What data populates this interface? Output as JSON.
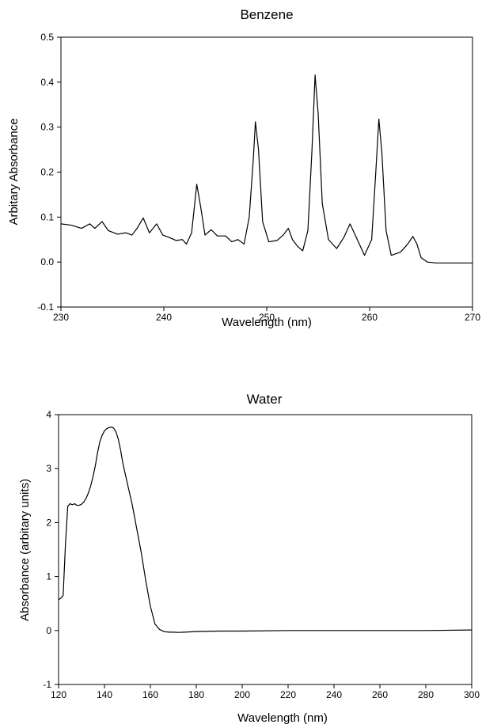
{
  "chart_data": [
    {
      "type": "line",
      "title": "Benzene",
      "xlabel": "Wavelength (nm)",
      "ylabel": "Arbitary Absorbance",
      "xlim": [
        230,
        270
      ],
      "ylim": [
        -0.1,
        0.5
      ],
      "xticks": [
        "230",
        "240",
        "250",
        "260",
        "270"
      ],
      "yticks": [
        "-0.1",
        "0.0",
        "0.1",
        "0.2",
        "0.3",
        "0.4",
        "0.5"
      ],
      "grid": false,
      "series": [
        {
          "x": [
            230,
            231,
            232,
            232.8,
            233.3,
            234.0,
            234.6,
            235.5,
            236.3,
            236.9,
            237.4,
            238.0,
            238.6,
            239.3,
            239.9,
            240.5,
            241.2,
            241.8,
            242.2,
            242.7,
            243.2,
            243.6,
            244.0,
            244.6,
            245.2,
            246.0,
            246.6,
            247.2,
            247.8,
            248.3,
            248.7,
            248.9,
            249.2,
            249.6,
            250.2,
            251.0,
            251.6,
            252.1,
            252.5,
            253.0,
            253.5,
            254.0,
            254.4,
            254.7,
            255.0,
            255.4,
            256.0,
            256.8,
            257.5,
            258.1,
            258.7,
            259.5,
            260.2,
            260.6,
            260.9,
            261.2,
            261.6,
            262.1,
            263.0,
            263.7,
            264.2,
            264.6,
            265.0,
            265.6,
            266.5,
            270.0
          ],
          "y": [
            0.085,
            0.082,
            0.075,
            0.085,
            0.075,
            0.09,
            0.07,
            0.062,
            0.065,
            0.06,
            0.075,
            0.098,
            0.065,
            0.085,
            0.06,
            0.055,
            0.048,
            0.05,
            0.04,
            0.065,
            0.173,
            0.12,
            0.06,
            0.072,
            0.058,
            0.058,
            0.045,
            0.05,
            0.04,
            0.1,
            0.23,
            0.312,
            0.25,
            0.09,
            0.045,
            0.048,
            0.06,
            0.075,
            0.05,
            0.035,
            0.025,
            0.07,
            0.25,
            0.416,
            0.33,
            0.13,
            0.05,
            0.03,
            0.055,
            0.085,
            0.055,
            0.015,
            0.05,
            0.2,
            0.318,
            0.24,
            0.07,
            0.015,
            0.022,
            0.04,
            0.057,
            0.04,
            0.01,
            0.0,
            -0.002,
            -0.002
          ]
        }
      ]
    },
    {
      "type": "line",
      "title": "Water",
      "xlabel": "Wavelength (nm)",
      "ylabel": "Absorbance (arbitary units)",
      "xlim": [
        120,
        300
      ],
      "ylim": [
        -1,
        4
      ],
      "xticks": [
        "120",
        "140",
        "160",
        "180",
        "200",
        "220",
        "240",
        "260",
        "280",
        "300"
      ],
      "yticks": [
        "-1",
        "0",
        "1",
        "2",
        "3",
        "4"
      ],
      "grid": false,
      "series": [
        {
          "x": [
            120,
            121,
            122,
            123,
            124,
            125,
            126,
            127,
            128,
            129,
            130,
            131,
            132,
            133,
            134,
            135,
            136,
            137,
            138,
            139,
            140,
            141,
            142,
            143,
            144,
            145,
            146,
            147,
            148,
            150,
            152,
            154,
            156,
            158,
            160,
            162,
            164,
            166,
            168,
            170,
            172,
            175,
            180,
            190,
            200,
            220,
            240,
            260,
            280,
            300
          ],
          "y": [
            0.57,
            0.6,
            0.65,
            1.6,
            2.3,
            2.35,
            2.33,
            2.35,
            2.32,
            2.32,
            2.34,
            2.38,
            2.45,
            2.55,
            2.68,
            2.85,
            3.05,
            3.3,
            3.5,
            3.62,
            3.7,
            3.74,
            3.76,
            3.77,
            3.75,
            3.68,
            3.55,
            3.35,
            3.1,
            2.72,
            2.35,
            1.9,
            1.45,
            0.92,
            0.45,
            0.12,
            0.02,
            -0.02,
            -0.03,
            -0.03,
            -0.035,
            -0.03,
            -0.02,
            -0.01,
            -0.01,
            0.0,
            0.0,
            0.0,
            0.0,
            0.01
          ]
        }
      ]
    }
  ]
}
